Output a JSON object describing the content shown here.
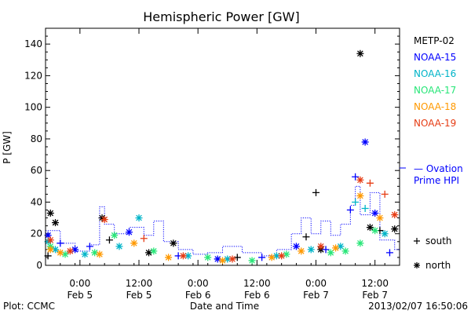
{
  "chart_data": {
    "type": "scatter",
    "title": "Hemispheric Power [GW]",
    "ylabel": "P [GW]",
    "xlabel": "Date and Time",
    "ylim": [
      0,
      150
    ],
    "yticks": [
      0,
      20,
      40,
      60,
      80,
      100,
      120,
      140
    ],
    "xlim": [
      "2013-02-04 17:00",
      "2013-02-07 17:00"
    ],
    "xticks": [
      {
        "t": "2013-02-05 00:00",
        "time": "0:00",
        "date": "Feb 5"
      },
      {
        "t": "2013-02-05 12:00",
        "time": "12:00",
        "date": "Feb 5"
      },
      {
        "t": "2013-02-06 00:00",
        "time": "0:00",
        "date": "Feb 6"
      },
      {
        "t": "2013-02-06 12:00",
        "time": "12:00",
        "date": "Feb 6"
      },
      {
        "t": "2013-02-07 00:00",
        "time": "0:00",
        "date": "Feb 7"
      },
      {
        "t": "2013-02-07 12:00",
        "time": "12:00",
        "date": "Feb 7"
      }
    ],
    "grid": false,
    "legend_position": "right",
    "series": [
      {
        "name": "METP-02",
        "color": "#000000",
        "points": [
          [
            "2013-02-04 17:30",
            6,
            "+"
          ],
          [
            "2013-02-04 18:00",
            33,
            "*"
          ],
          [
            "2013-02-04 19:00",
            27,
            "*"
          ],
          [
            "2013-02-05 04:30",
            30,
            "*"
          ],
          [
            "2013-02-05 06:00",
            16,
            "+"
          ],
          [
            "2013-02-05 14:00",
            8,
            "*"
          ],
          [
            "2013-02-05 19:00",
            14,
            "*"
          ],
          [
            "2013-02-06 08:00",
            5,
            "+"
          ],
          [
            "2013-02-06 22:00",
            18,
            "+"
          ],
          [
            "2013-02-07 00:00",
            46,
            "+"
          ],
          [
            "2013-02-07 01:00",
            10,
            "*"
          ],
          [
            "2013-02-07 09:00",
            134,
            "*"
          ],
          [
            "2013-02-07 11:00",
            24,
            "*"
          ],
          [
            "2013-02-07 13:00",
            22,
            "+"
          ],
          [
            "2013-02-07 16:00",
            23,
            "*"
          ]
        ]
      },
      {
        "name": "NOAA-15",
        "color": "#0000ff",
        "points": [
          [
            "2013-02-04 17:30",
            19,
            "*"
          ],
          [
            "2013-02-04 20:00",
            14,
            "+"
          ],
          [
            "2013-02-04 23:00",
            10,
            "*"
          ],
          [
            "2013-02-05 02:00",
            12,
            "+"
          ],
          [
            "2013-02-05 10:00",
            21,
            "*"
          ],
          [
            "2013-02-05 20:00",
            6,
            "+"
          ],
          [
            "2013-02-06 04:00",
            4,
            "*"
          ],
          [
            "2013-02-06 13:00",
            5,
            "+"
          ],
          [
            "2013-02-06 20:00",
            12,
            "*"
          ],
          [
            "2013-02-07 02:00",
            10,
            "+"
          ],
          [
            "2013-02-07 07:00",
            35,
            "+"
          ],
          [
            "2013-02-07 08:00",
            56,
            "+"
          ],
          [
            "2013-02-07 10:00",
            78,
            "*"
          ],
          [
            "2013-02-07 12:00",
            33,
            "*"
          ],
          [
            "2013-02-07 15:00",
            8,
            "+"
          ]
        ]
      },
      {
        "name": "NOAA-16",
        "color": "#00b4c8",
        "points": [
          [
            "2013-02-04 17:30",
            15,
            "*"
          ],
          [
            "2013-02-04 19:00",
            10,
            "*"
          ],
          [
            "2013-02-05 01:00",
            7,
            "*"
          ],
          [
            "2013-02-05 08:00",
            12,
            "*"
          ],
          [
            "2013-02-05 12:00",
            30,
            "*"
          ],
          [
            "2013-02-05 22:00",
            6,
            "*"
          ],
          [
            "2013-02-06 06:00",
            4,
            "*"
          ],
          [
            "2013-02-06 16:00",
            6,
            "*"
          ],
          [
            "2013-02-06 23:00",
            10,
            "*"
          ],
          [
            "2013-02-07 05:00",
            12,
            "*"
          ],
          [
            "2013-02-07 08:00",
            40,
            "+"
          ],
          [
            "2013-02-07 10:00",
            36,
            "+"
          ],
          [
            "2013-02-07 14:00",
            20,
            "*"
          ]
        ]
      },
      {
        "name": "NOAA-17",
        "color": "#28e678",
        "points": [
          [
            "2013-02-04 18:00",
            12,
            "*"
          ],
          [
            "2013-02-04 21:00",
            7,
            "*"
          ],
          [
            "2013-02-05 03:00",
            8,
            "*"
          ],
          [
            "2013-02-05 07:00",
            19,
            "*"
          ],
          [
            "2013-02-05 15:00",
            9,
            "*"
          ],
          [
            "2013-02-06 02:00",
            5,
            "*"
          ],
          [
            "2013-02-06 11:00",
            3,
            "*"
          ],
          [
            "2013-02-06 18:00",
            7,
            "*"
          ],
          [
            "2013-02-07 03:00",
            8,
            "*"
          ],
          [
            "2013-02-07 06:00",
            9,
            "*"
          ],
          [
            "2013-02-07 09:00",
            14,
            "*"
          ],
          [
            "2013-02-07 12:00",
            22,
            "*"
          ]
        ]
      },
      {
        "name": "NOAA-18",
        "color": "#ff9900",
        "points": [
          [
            "2013-02-04 18:00",
            10,
            "*"
          ],
          [
            "2013-02-04 20:00",
            8,
            "*"
          ],
          [
            "2013-02-05 04:00",
            7,
            "*"
          ],
          [
            "2013-02-05 11:00",
            14,
            "*"
          ],
          [
            "2013-02-05 18:00",
            5,
            "*"
          ],
          [
            "2013-02-06 05:00",
            3,
            "*"
          ],
          [
            "2013-02-06 15:00",
            5,
            "*"
          ],
          [
            "2013-02-06 21:00",
            9,
            "*"
          ],
          [
            "2013-02-07 04:00",
            11,
            "*"
          ],
          [
            "2013-02-07 09:00",
            44,
            "*"
          ],
          [
            "2013-02-07 13:00",
            30,
            "*"
          ]
        ]
      },
      {
        "name": "NOAA-19",
        "color": "#e63c14",
        "points": [
          [
            "2013-02-04 18:00",
            16,
            "*"
          ],
          [
            "2013-02-04 22:00",
            9,
            "*"
          ],
          [
            "2013-02-05 05:00",
            29,
            "*"
          ],
          [
            "2013-02-05 13:00",
            17,
            "+"
          ],
          [
            "2013-02-05 21:00",
            6,
            "*"
          ],
          [
            "2013-02-06 07:00",
            4,
            "*"
          ],
          [
            "2013-02-06 17:00",
            6,
            "*"
          ],
          [
            "2013-02-07 01:00",
            12,
            "*"
          ],
          [
            "2013-02-07 09:00",
            54,
            "*"
          ],
          [
            "2013-02-07 11:00",
            52,
            "+"
          ],
          [
            "2013-02-07 14:00",
            45,
            "+"
          ],
          [
            "2013-02-07 16:00",
            32,
            "*"
          ]
        ]
      }
    ],
    "ovation": {
      "name": "Ovation Prime HPI",
      "legend_lines": [
        "— Ovation",
        "Prime HPI"
      ],
      "color": "#0000ff",
      "points": [
        [
          "2013-02-04 17:00",
          22
        ],
        [
          "2013-02-04 20:00",
          14
        ],
        [
          "2013-02-04 23:00",
          9
        ],
        [
          "2013-02-05 02:00",
          13
        ],
        [
          "2013-02-05 04:00",
          37
        ],
        [
          "2013-02-05 05:00",
          26
        ],
        [
          "2013-02-05 07:00",
          20
        ],
        [
          "2013-02-05 10:00",
          24
        ],
        [
          "2013-02-05 13:00",
          19
        ],
        [
          "2013-02-05 15:00",
          28
        ],
        [
          "2013-02-05 17:00",
          15
        ],
        [
          "2013-02-05 20:00",
          10
        ],
        [
          "2013-02-05 23:00",
          7
        ],
        [
          "2013-02-06 02:00",
          8
        ],
        [
          "2013-02-06 05:00",
          12
        ],
        [
          "2013-02-06 09:00",
          8
        ],
        [
          "2013-02-06 13:00",
          6
        ],
        [
          "2013-02-06 16:00",
          10
        ],
        [
          "2013-02-06 19:00",
          20
        ],
        [
          "2013-02-06 21:00",
          30
        ],
        [
          "2013-02-06 23:00",
          20
        ],
        [
          "2013-02-07 01:00",
          28
        ],
        [
          "2013-02-07 03:00",
          19
        ],
        [
          "2013-02-07 05:00",
          26
        ],
        [
          "2013-02-07 07:00",
          38
        ],
        [
          "2013-02-07 08:00",
          50
        ],
        [
          "2013-02-07 09:00",
          32
        ],
        [
          "2013-02-07 11:00",
          46
        ],
        [
          "2013-02-07 13:00",
          16
        ],
        [
          "2013-02-07 16:00",
          10
        ]
      ]
    },
    "marker_legend": [
      {
        "symbol": "+",
        "label": "south"
      },
      {
        "symbol": "*",
        "label": "north"
      }
    ]
  },
  "footer": {
    "left": "Plot: CCMC",
    "right": "2013/02/07 16:50:06"
  }
}
